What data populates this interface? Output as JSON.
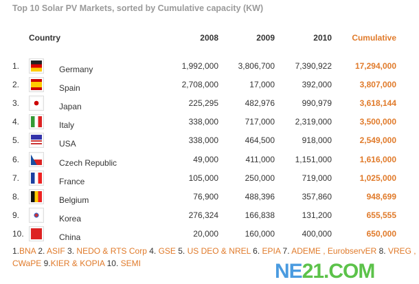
{
  "chart_data": {
    "type": "table",
    "title": "Top 10 Solar PV Markets, sorted by Cumulative capacity (KW)",
    "columns": [
      "Country",
      "2008",
      "2009",
      "2010",
      "Cumulative"
    ],
    "rows": [
      {
        "rank": "1.",
        "country": "Germany",
        "flag": "germany-flag",
        "y2008": "1,992,000",
        "y2009": "3,806,700",
        "y2010": "7,390,922",
        "cumulative": "17,294,000"
      },
      {
        "rank": "2.",
        "country": "Spain",
        "flag": "spain-flag",
        "y2008": "2,708,000",
        "y2009": "17,000",
        "y2010": "392,000",
        "cumulative": "3,807,000"
      },
      {
        "rank": "3.",
        "country": "Japan",
        "flag": "japan-flag",
        "y2008": "225,295",
        "y2009": "482,976",
        "y2010": "990,979",
        "cumulative": "3,618,144"
      },
      {
        "rank": "4.",
        "country": "Italy",
        "flag": "italy-flag",
        "y2008": "338,000",
        "y2009": "717,000",
        "y2010": "2,319,000",
        "cumulative": "3,500,000"
      },
      {
        "rank": "5.",
        "country": "USA",
        "flag": "usa-flag",
        "y2008": "338,000",
        "y2009": "464,500",
        "y2010": "918,000",
        "cumulative": "2,549,000"
      },
      {
        "rank": "6.",
        "country": "Czech Republic",
        "flag": "czech-flag",
        "y2008": "49,000",
        "y2009": "411,000",
        "y2010": "1,151,000",
        "cumulative": "1,616,000"
      },
      {
        "rank": "7.",
        "country": "France",
        "flag": "france-flag",
        "y2008": "105,000",
        "y2009": "250,000",
        "y2010": "719,000",
        "cumulative": "1,025,000"
      },
      {
        "rank": "8.",
        "country": "Belgium",
        "flag": "belgium-flag",
        "y2008": "76,900",
        "y2009": "488,396",
        "y2010": "357,860",
        "cumulative": "948,699"
      },
      {
        "rank": "9.",
        "country": "Korea",
        "flag": "korea-flag",
        "y2008": "276,324",
        "y2009": "166,838",
        "y2010": "131,200",
        "cumulative": "655,555"
      },
      {
        "rank": "10.",
        "country": "China",
        "flag": "china-flag",
        "y2008": "20,000",
        "y2009": "160,000",
        "y2010": "400,000",
        "cumulative": "650,000"
      }
    ]
  },
  "sources": [
    {
      "num": "1.",
      "name": "BNA"
    },
    {
      "num": " 2. ",
      "name": "ASIF"
    },
    {
      "num": " 3. ",
      "name": "NEDO & RTS Corp"
    },
    {
      "num": " 4. ",
      "name": "GSE"
    },
    {
      "num": " 5. ",
      "name": "US DEO & NREL"
    },
    {
      "num": " 6. ",
      "name": "EPIA"
    },
    {
      "num": " 7. ",
      "name": "ADEME , EurobservER"
    },
    {
      "num": " 8. ",
      "name": "VREG , CWaPE"
    },
    {
      "num": "  9.",
      "name": "KIER & KOPIA"
    },
    {
      "num": " 10. ",
      "name": "SEMI"
    }
  ],
  "watermark": {
    "part1": "NE",
    "part2": "21.COM"
  },
  "colors": {
    "accent": "#e07a2a",
    "title": "#9a9a9a",
    "text": "#333333"
  }
}
